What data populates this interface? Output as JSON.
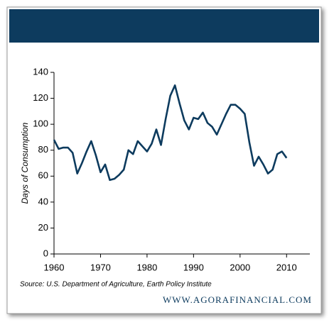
{
  "chart_data": {
    "type": "line",
    "ylabel": "Days of Consumption",
    "source": "Source: U.S. Department of Agriculture, Earth Policy Institute",
    "website": "WWW.AGORAFINANCIAL.COM",
    "x": [
      1960,
      1961,
      1962,
      1963,
      1964,
      1965,
      1966,
      1967,
      1968,
      1969,
      1970,
      1971,
      1972,
      1973,
      1974,
      1975,
      1976,
      1977,
      1978,
      1979,
      1980,
      1981,
      1982,
      1983,
      1984,
      1985,
      1986,
      1987,
      1988,
      1989,
      1990,
      1991,
      1992,
      1993,
      1994,
      1995,
      1996,
      1997,
      1998,
      1999,
      2000,
      2001,
      2002,
      2003,
      2004,
      2005,
      2006,
      2007,
      2008,
      2009,
      2010
    ],
    "series": [
      {
        "color": "#0d3b5e",
        "values": [
          88,
          81,
          82,
          82,
          78,
          62,
          70,
          79,
          87,
          76,
          63,
          69,
          57,
          58,
          61,
          65,
          80,
          77,
          87,
          83,
          79,
          85,
          96,
          84,
          104,
          122,
          130,
          116,
          103,
          96,
          105,
          104,
          109,
          101,
          98,
          92,
          100,
          108,
          115,
          115,
          112,
          108,
          86,
          68,
          75,
          69,
          62,
          65,
          77,
          79,
          74
        ]
      }
    ],
    "xlim": [
      1960,
      2015
    ],
    "xticks": [
      1960,
      1970,
      1980,
      1990,
      2000,
      2010
    ],
    "ylim": [
      0,
      140
    ],
    "yticks": [
      0,
      20,
      40,
      60,
      80,
      100,
      120,
      140
    ],
    "grid": false
  }
}
